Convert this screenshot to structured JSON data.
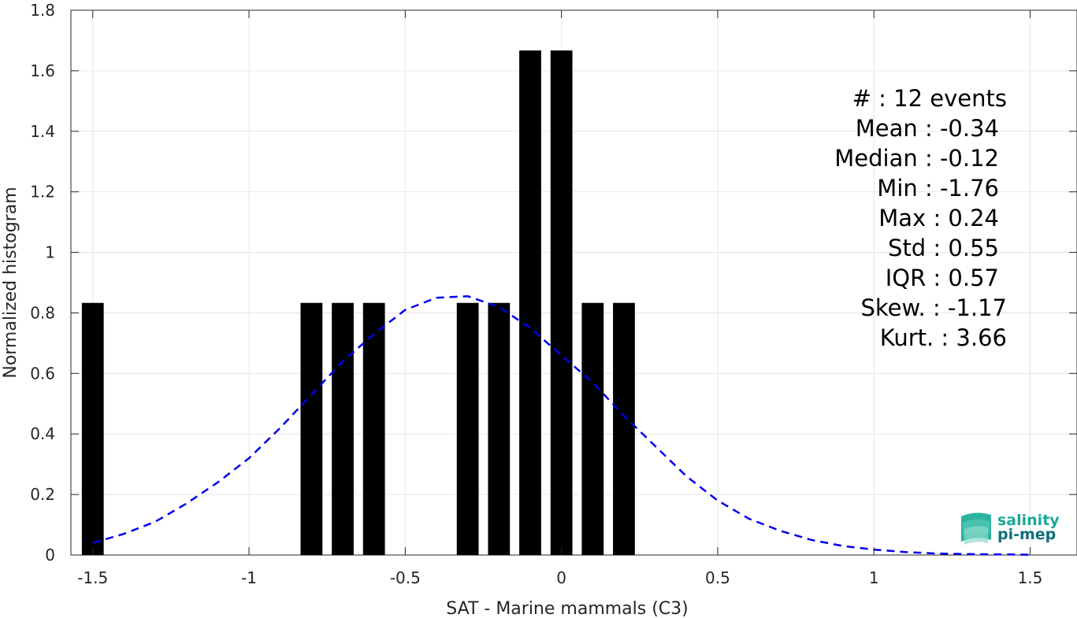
{
  "chart_data": {
    "type": "bar",
    "xlabel": "SAT - Marine mammals (C3)",
    "ylabel": "Normalized histogram",
    "xlim": [
      -1.57,
      1.65
    ],
    "ylim": [
      0,
      1.8
    ],
    "xticks": [
      -1.5,
      -1,
      -0.5,
      0,
      0.5,
      1,
      1.5
    ],
    "xtick_labels": [
      "-1.5",
      "-1",
      "-0.5",
      "0",
      "0.5",
      "1",
      "1.5"
    ],
    "yticks": [
      0,
      0.2,
      0.4,
      0.6,
      0.8,
      1,
      1.2,
      1.4,
      1.6,
      1.8
    ],
    "ytick_labels": [
      "0",
      "0.2",
      "0.4",
      "0.6",
      "0.8",
      "1",
      "1.2",
      "1.4",
      "1.6",
      "1.8"
    ],
    "grid": true,
    "bar_width": 0.07,
    "bars": [
      {
        "x": -1.5,
        "value": 0.833
      },
      {
        "x": -0.8,
        "value": 0.833
      },
      {
        "x": -0.7,
        "value": 0.833
      },
      {
        "x": -0.6,
        "value": 0.833
      },
      {
        "x": -0.3,
        "value": 0.833
      },
      {
        "x": -0.2,
        "value": 0.833
      },
      {
        "x": -0.1,
        "value": 1.667
      },
      {
        "x": 0.0,
        "value": 1.667
      },
      {
        "x": 0.1,
        "value": 0.833
      },
      {
        "x": 0.2,
        "value": 0.833
      }
    ],
    "fit_curve": {
      "style": "dashed",
      "color": "#0000ee",
      "x": [
        -1.5,
        -1.4,
        -1.3,
        -1.2,
        -1.1,
        -1.0,
        -0.9,
        -0.8,
        -0.7,
        -0.6,
        -0.5,
        -0.4,
        -0.3,
        -0.2,
        -0.1,
        0.0,
        0.1,
        0.2,
        0.3,
        0.4,
        0.5,
        0.6,
        0.7,
        0.8,
        0.9,
        1.0,
        1.1,
        1.2,
        1.3,
        1.4,
        1.5
      ],
      "y": [
        0.04,
        0.07,
        0.11,
        0.17,
        0.24,
        0.32,
        0.42,
        0.53,
        0.64,
        0.73,
        0.81,
        0.85,
        0.855,
        0.82,
        0.75,
        0.66,
        0.57,
        0.46,
        0.36,
        0.26,
        0.18,
        0.12,
        0.08,
        0.05,
        0.03,
        0.018,
        0.01,
        0.005,
        0.003,
        0.002,
        0.001
      ]
    },
    "stats": [
      "#  : 12 events",
      "Mean : -0.34",
      "Median : -0.12",
      "Min : -1.76",
      "Max : 0.24",
      "Std : 0.55",
      "IQR : 0.57",
      "Skew. : -1.17",
      "Kurt. : 3.66"
    ],
    "colors": {
      "bars": "#000000",
      "axes": "#262626",
      "grid": "#e6e6e6"
    }
  },
  "logo": {
    "line1": "salinity",
    "line2": "pi-mep",
    "color_line1": "#1aa89a",
    "color_line2": "#0e6e7a"
  }
}
